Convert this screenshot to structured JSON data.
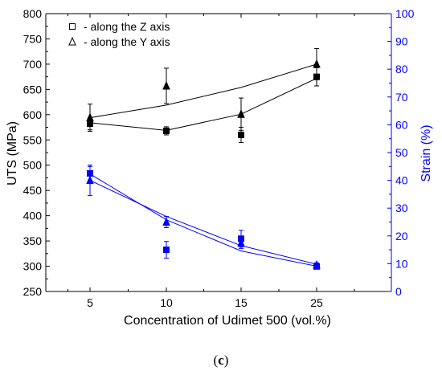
{
  "chart_data": {
    "type": "scatter",
    "x_axis": {
      "label": "Concentration of Udimet 500 (vol.%)",
      "categories": [
        "5",
        "10",
        "15",
        "25"
      ]
    },
    "y_axis_left": {
      "label": "UTS (MPa)",
      "range": [
        250,
        800
      ],
      "ticks": [
        "250",
        "300",
        "350",
        "400",
        "450",
        "500",
        "550",
        "600",
        "650",
        "700",
        "750",
        "800"
      ],
      "color": "#000000"
    },
    "y_axis_right": {
      "label": "Strain (%)",
      "range": [
        0,
        100
      ],
      "ticks": [
        "0",
        "10",
        "20",
        "30",
        "40",
        "50",
        "60",
        "70",
        "80",
        "90",
        "100"
      ],
      "color": "#0000ff"
    },
    "legend": {
      "placement": "top-left",
      "items": [
        {
          "marker": "square",
          "label": "- along the Z axis"
        },
        {
          "marker": "triangle",
          "label": "- along the Y axis"
        }
      ]
    },
    "series": [
      {
        "axis": "left",
        "marker": "square",
        "color": "#000000",
        "points": [
          {
            "x": "5",
            "y": 582,
            "err": 12
          },
          {
            "x": "10",
            "y": 568,
            "err": 8
          },
          {
            "x": "15",
            "y": 560,
            "err": 15
          },
          {
            "x": "25",
            "y": 675,
            "err": 18
          }
        ],
        "fit": [
          {
            "x": "5",
            "y": 584
          },
          {
            "x": "10",
            "y": 569
          },
          {
            "x": "15",
            "y": 601
          },
          {
            "x": "25",
            "y": 672
          }
        ]
      },
      {
        "axis": "left",
        "marker": "triangle",
        "color": "#000000",
        "points": [
          {
            "x": "5",
            "y": 594,
            "err": 27
          },
          {
            "x": "10",
            "y": 657,
            "err": 35
          },
          {
            "x": "15",
            "y": 601,
            "err": 32
          },
          {
            "x": "25",
            "y": 700,
            "err": 31
          }
        ],
        "fit": [
          {
            "x": "5",
            "y": 594
          },
          {
            "x": "10",
            "y": 619
          },
          {
            "x": "15",
            "y": 654
          },
          {
            "x": "25",
            "y": 700
          }
        ]
      },
      {
        "axis": "right",
        "marker": "square",
        "color": "#0000ff",
        "points": [
          {
            "x": "5",
            "y": 42.5,
            "err": 2.5
          },
          {
            "x": "10",
            "y": 15,
            "err": 3
          },
          {
            "x": "15",
            "y": 19,
            "err": 3
          },
          {
            "x": "25",
            "y": 9,
            "err": 0.8
          }
        ],
        "fit": [
          {
            "x": "5",
            "y": 42.3
          },
          {
            "x": "10",
            "y": 25.8
          },
          {
            "x": "15",
            "y": 14.6
          },
          {
            "x": "25",
            "y": 9.1
          }
        ]
      },
      {
        "axis": "right",
        "marker": "triangle",
        "color": "#0000ff",
        "points": [
          {
            "x": "5",
            "y": 40,
            "err": 5.5
          },
          {
            "x": "10",
            "y": 25,
            "err": 2
          },
          {
            "x": "15",
            "y": 17.5,
            "err": 2
          },
          {
            "x": "25",
            "y": 9.5,
            "err": 0.8
          }
        ],
        "fit": [
          {
            "x": "5",
            "y": 40
          },
          {
            "x": "10",
            "y": 27
          },
          {
            "x": "15",
            "y": 16.5
          },
          {
            "x": "25",
            "y": 9.8
          }
        ]
      }
    ]
  },
  "caption": {
    "letter": "c"
  }
}
